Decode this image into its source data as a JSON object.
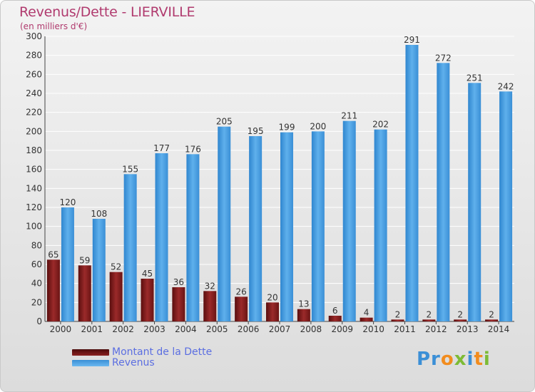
{
  "header": {
    "title": "Revenus/Dette - LIERVILLE",
    "subtitle": "(en milliers d'€)"
  },
  "legend": {
    "items": [
      {
        "label": "Montant de la Dette",
        "color": "#7a1a1a"
      },
      {
        "label": "Revenus",
        "color": "#4a9fe0"
      }
    ]
  },
  "logo": {
    "text": "Proxiti"
  },
  "chart_data": {
    "type": "bar",
    "title": "Revenus/Dette - LIERVILLE",
    "subtitle": "(en milliers d'€)",
    "categories": [
      "2000",
      "2001",
      "2002",
      "2003",
      "2004",
      "2005",
      "2006",
      "2007",
      "2008",
      "2009",
      "2010",
      "2011",
      "2012",
      "2013",
      "2014"
    ],
    "series": [
      {
        "name": "Montant de la Dette",
        "color": "#7a1a1a",
        "values": [
          65,
          59,
          52,
          45,
          36,
          32,
          26,
          20,
          13,
          6,
          4,
          2,
          2,
          2,
          2
        ]
      },
      {
        "name": "Revenus",
        "color": "#4a9fe0",
        "values": [
          120,
          108,
          155,
          177,
          176,
          205,
          195,
          199,
          200,
          211,
          202,
          291,
          272,
          251,
          242
        ]
      }
    ],
    "ylim": [
      0,
      300
    ],
    "yticks": [
      0,
      20,
      40,
      60,
      80,
      100,
      120,
      140,
      160,
      180,
      200,
      220,
      240,
      260,
      280,
      300
    ],
    "grid": true,
    "legend_position": "bottom-left"
  }
}
